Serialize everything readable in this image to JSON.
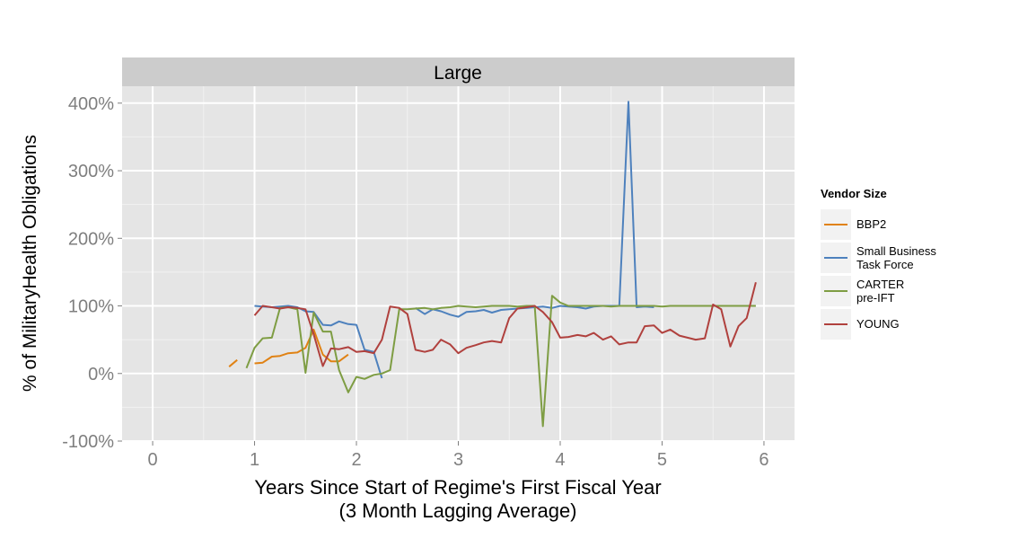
{
  "chart_data": {
    "type": "line",
    "facet_label": "Large",
    "xlabel": "Years Since Start of Regime's First Fiscal Year\n(3 Month Lagging Average)",
    "ylabel": "% of MilitaryHealth Obligations",
    "xlim": [
      -0.3,
      6.3
    ],
    "ylim": [
      -100,
      425
    ],
    "x_ticks": [
      0,
      1,
      2,
      3,
      4,
      5,
      6
    ],
    "x_tick_labels": [
      "0",
      "1",
      "2",
      "3",
      "4",
      "5",
      "6"
    ],
    "y_ticks": [
      -100,
      0,
      100,
      200,
      300,
      400
    ],
    "y_tick_labels": [
      "-100%",
      "0%",
      "100%",
      "200%",
      "300%",
      "400%"
    ],
    "grid": true,
    "legend": {
      "title": "Vendor Size",
      "position": "right"
    },
    "series": [
      {
        "name": "BBP2",
        "color": "#E08214",
        "segments": [
          {
            "x": [
              0.75,
              0.83
            ],
            "y": [
              10,
              20
            ]
          },
          {
            "x": [
              1.0,
              1.08,
              1.17,
              1.25,
              1.33,
              1.42,
              1.5,
              1.58,
              1.67,
              1.75,
              1.83,
              1.92
            ],
            "y": [
              15,
              16,
              25,
              26,
              30,
              31,
              38,
              65,
              28,
              18,
              18,
              28
            ]
          }
        ]
      },
      {
        "name": "Small Business\nTask Force",
        "color": "#4E81BD",
        "segments": [
          {
            "x": [
              1.0,
              1.08,
              1.17,
              1.25,
              1.33,
              1.42,
              1.5,
              1.58,
              1.67,
              1.75,
              1.83,
              1.92,
              2.0,
              2.08,
              2.17,
              2.25
            ],
            "y": [
              100,
              99,
              98,
              99,
              100,
              98,
              92,
              91,
              72,
              71,
              77,
              73,
              72,
              35,
              32,
              -7
            ]
          },
          {
            "x": [
              2.58,
              2.67,
              2.75,
              2.83,
              2.92,
              3.0,
              3.08,
              3.17,
              3.25,
              3.33,
              3.42,
              3.5,
              3.58,
              3.67,
              3.75,
              3.83,
              3.92,
              4.0,
              4.08,
              4.17,
              4.25,
              4.33,
              4.42,
              4.5,
              4.58,
              4.67,
              4.75,
              4.83,
              4.92
            ],
            "y": [
              97,
              88,
              95,
              92,
              87,
              84,
              91,
              92,
              94,
              90,
              94,
              95,
              96,
              97,
              98,
              99,
              97,
              100,
              99,
              98,
              96,
              99,
              100,
              100,
              100,
              402,
              98,
              99,
              98
            ]
          }
        ]
      },
      {
        "name": "CARTER\n pre-IFT",
        "color": "#7E9D43",
        "segments": [
          {
            "x": [
              0.92,
              1.0,
              1.08,
              1.17,
              1.25,
              1.33,
              1.42,
              1.5,
              1.58,
              1.67,
              1.75,
              1.83,
              1.92,
              2.0,
              2.08,
              2.17,
              2.25,
              2.33,
              2.42,
              2.5,
              2.58,
              2.67,
              2.75,
              2.83,
              2.92,
              3.0,
              3.08,
              3.17,
              3.25,
              3.33,
              3.42,
              3.5,
              3.58,
              3.67,
              3.75,
              3.83,
              3.92,
              4.0,
              4.08,
              4.17,
              4.25,
              4.33,
              4.42,
              4.5,
              4.58,
              4.67,
              4.75,
              4.83,
              4.92,
              5.0,
              5.08,
              5.17,
              5.25,
              5.33,
              5.42,
              5.5,
              5.58,
              5.67,
              5.75,
              5.83,
              5.92
            ],
            "y": [
              8,
              38,
              52,
              53,
              97,
              98,
              95,
              1,
              90,
              62,
              62,
              5,
              -28,
              -5,
              -8,
              -2,
              0,
              5,
              95,
              95,
              96,
              97,
              95,
              97,
              98,
              100,
              99,
              98,
              99,
              100,
              100,
              100,
              99,
              100,
              100,
              -78,
              115,
              105,
              100,
              100,
              100,
              100,
              100,
              99,
              100,
              100,
              100,
              100,
              100,
              99,
              100,
              100,
              100,
              100,
              100,
              100,
              100,
              100,
              100,
              100,
              100
            ]
          }
        ]
      },
      {
        "name": "YOUNG",
        "color": "#B0413E",
        "segments": [
          {
            "x": [
              1.0,
              1.08,
              1.17,
              1.25,
              1.33,
              1.42,
              1.5,
              1.58,
              1.67,
              1.75,
              1.83,
              1.92,
              2.0,
              2.08,
              2.17,
              2.25,
              2.33,
              2.42,
              2.5,
              2.58,
              2.67,
              2.75,
              2.83,
              2.92,
              3.0,
              3.08,
              3.17,
              3.25,
              3.33,
              3.42,
              3.5,
              3.58,
              3.67,
              3.75,
              3.83,
              3.92,
              4.0,
              4.08,
              4.17,
              4.25,
              4.33,
              4.42,
              4.5,
              4.58,
              4.67,
              4.75,
              4.83,
              4.92,
              5.0,
              5.08,
              5.17,
              5.25,
              5.33,
              5.42,
              5.5,
              5.58,
              5.67,
              5.75,
              5.83,
              5.92
            ],
            "y": [
              86,
              100,
              98,
              96,
              98,
              97,
              95,
              58,
              11,
              37,
              36,
              39,
              32,
              33,
              30,
              50,
              99,
              97,
              88,
              35,
              32,
              35,
              50,
              43,
              30,
              38,
              42,
              46,
              48,
              46,
              82,
              96,
              98,
              100,
              91,
              76,
              53,
              54,
              57,
              55,
              60,
              50,
              55,
              43,
              46,
              46,
              70,
              71,
              60,
              65,
              56,
              53,
              50,
              52,
              102,
              95,
              40,
              70,
              82,
              135
            ]
          }
        ]
      }
    ]
  }
}
